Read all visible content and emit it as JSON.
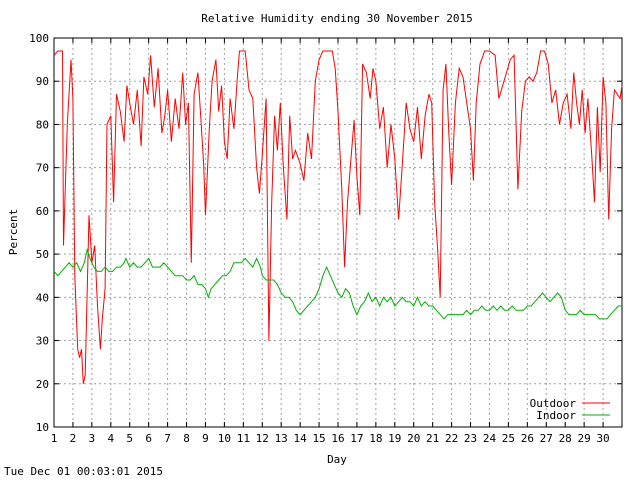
{
  "footer": "Tue Dec 01 00:03:01 2015",
  "chart_data": {
    "type": "line",
    "title": "Relative Humidity ending 30 November 2015",
    "xlabel": "Day",
    "ylabel": "Percent",
    "xlim": [
      1,
      31
    ],
    "ylim": [
      10,
      100
    ],
    "grid": true,
    "legend_position": "bottom-right",
    "x_ticks": [
      1,
      2,
      3,
      4,
      5,
      6,
      7,
      8,
      9,
      10,
      11,
      12,
      13,
      14,
      15,
      16,
      17,
      18,
      19,
      20,
      21,
      22,
      23,
      24,
      25,
      26,
      27,
      28,
      29,
      30
    ],
    "y_ticks": [
      10,
      20,
      30,
      40,
      50,
      60,
      70,
      80,
      90,
      100
    ],
    "series": [
      {
        "name": "Outdoor",
        "color": "#ff0000",
        "points": [
          [
            1.0,
            96
          ],
          [
            1.2,
            97
          ],
          [
            1.45,
            97
          ],
          [
            1.5,
            52
          ],
          [
            1.7,
            80
          ],
          [
            1.9,
            95
          ],
          [
            2.0,
            86
          ],
          [
            2.1,
            45
          ],
          [
            2.25,
            28
          ],
          [
            2.35,
            26
          ],
          [
            2.45,
            28
          ],
          [
            2.55,
            20
          ],
          [
            2.65,
            22
          ],
          [
            2.85,
            59
          ],
          [
            3.0,
            48
          ],
          [
            3.15,
            52
          ],
          [
            3.3,
            38
          ],
          [
            3.45,
            28
          ],
          [
            3.55,
            35
          ],
          [
            3.7,
            42
          ],
          [
            3.8,
            80
          ],
          [
            4.0,
            82
          ],
          [
            4.15,
            62
          ],
          [
            4.3,
            87
          ],
          [
            4.5,
            83
          ],
          [
            4.7,
            76
          ],
          [
            4.85,
            89
          ],
          [
            5.0,
            85
          ],
          [
            5.2,
            80
          ],
          [
            5.4,
            88
          ],
          [
            5.6,
            75
          ],
          [
            5.75,
            91
          ],
          [
            5.95,
            87
          ],
          [
            6.1,
            96
          ],
          [
            6.3,
            84
          ],
          [
            6.5,
            93
          ],
          [
            6.7,
            78
          ],
          [
            6.85,
            82
          ],
          [
            7.0,
            88
          ],
          [
            7.2,
            76
          ],
          [
            7.4,
            86
          ],
          [
            7.6,
            79
          ],
          [
            7.8,
            92
          ],
          [
            7.95,
            80
          ],
          [
            8.1,
            85
          ],
          [
            8.25,
            48
          ],
          [
            8.4,
            87
          ],
          [
            8.6,
            92
          ],
          [
            8.75,
            82
          ],
          [
            8.9,
            71
          ],
          [
            9.0,
            59
          ],
          [
            9.2,
            79
          ],
          [
            9.35,
            90
          ],
          [
            9.55,
            95
          ],
          [
            9.7,
            83
          ],
          [
            9.85,
            89
          ],
          [
            10.0,
            76
          ],
          [
            10.15,
            72
          ],
          [
            10.3,
            86
          ],
          [
            10.5,
            79
          ],
          [
            10.7,
            92
          ],
          [
            10.8,
            97
          ],
          [
            11.1,
            97
          ],
          [
            11.3,
            88
          ],
          [
            11.5,
            86
          ],
          [
            11.7,
            70
          ],
          [
            11.85,
            64
          ],
          [
            12.0,
            73
          ],
          [
            12.2,
            86
          ],
          [
            12.35,
            30
          ],
          [
            12.5,
            62
          ],
          [
            12.65,
            82
          ],
          [
            12.8,
            74
          ],
          [
            12.95,
            85
          ],
          [
            13.1,
            71
          ],
          [
            13.3,
            58
          ],
          [
            13.45,
            82
          ],
          [
            13.6,
            72
          ],
          [
            13.75,
            74
          ],
          [
            14.0,
            71
          ],
          [
            14.2,
            67
          ],
          [
            14.4,
            78
          ],
          [
            14.6,
            72
          ],
          [
            14.8,
            90
          ],
          [
            15.0,
            95
          ],
          [
            15.2,
            97
          ],
          [
            15.7,
            97
          ],
          [
            15.85,
            93
          ],
          [
            16.0,
            83
          ],
          [
            16.2,
            65
          ],
          [
            16.35,
            47
          ],
          [
            16.5,
            62
          ],
          [
            16.7,
            73
          ],
          [
            16.85,
            81
          ],
          [
            17.0,
            68
          ],
          [
            17.15,
            59
          ],
          [
            17.3,
            94
          ],
          [
            17.5,
            92
          ],
          [
            17.7,
            86
          ],
          [
            17.85,
            93
          ],
          [
            18.0,
            90
          ],
          [
            18.2,
            79
          ],
          [
            18.4,
            84
          ],
          [
            18.6,
            70
          ],
          [
            18.8,
            80
          ],
          [
            19.0,
            72
          ],
          [
            19.2,
            58
          ],
          [
            19.4,
            71
          ],
          [
            19.6,
            85
          ],
          [
            19.8,
            79
          ],
          [
            20.0,
            76
          ],
          [
            20.2,
            84
          ],
          [
            20.4,
            72
          ],
          [
            20.6,
            82
          ],
          [
            20.8,
            87
          ],
          [
            20.95,
            85
          ],
          [
            21.1,
            62
          ],
          [
            21.25,
            52
          ],
          [
            21.4,
            40
          ],
          [
            21.55,
            88
          ],
          [
            21.7,
            94
          ],
          [
            21.85,
            78
          ],
          [
            22.0,
            66
          ],
          [
            22.2,
            85
          ],
          [
            22.4,
            93
          ],
          [
            22.6,
            91
          ],
          [
            22.8,
            85
          ],
          [
            23.0,
            79
          ],
          [
            23.15,
            67
          ],
          [
            23.3,
            85
          ],
          [
            23.5,
            94
          ],
          [
            23.75,
            97
          ],
          [
            24.0,
            97
          ],
          [
            24.3,
            96
          ],
          [
            24.5,
            86
          ],
          [
            24.7,
            89
          ],
          [
            24.9,
            92
          ],
          [
            25.1,
            95
          ],
          [
            25.3,
            96
          ],
          [
            25.5,
            65
          ],
          [
            25.7,
            83
          ],
          [
            25.9,
            90
          ],
          [
            26.1,
            91
          ],
          [
            26.3,
            90
          ],
          [
            26.5,
            92
          ],
          [
            26.7,
            97
          ],
          [
            26.9,
            97
          ],
          [
            27.1,
            94
          ],
          [
            27.3,
            85
          ],
          [
            27.5,
            88
          ],
          [
            27.7,
            80
          ],
          [
            27.9,
            85
          ],
          [
            28.1,
            87
          ],
          [
            28.3,
            79
          ],
          [
            28.45,
            92
          ],
          [
            28.6,
            85
          ],
          [
            28.75,
            80
          ],
          [
            28.9,
            88
          ],
          [
            29.05,
            78
          ],
          [
            29.2,
            86
          ],
          [
            29.4,
            73
          ],
          [
            29.55,
            62
          ],
          [
            29.7,
            84
          ],
          [
            29.85,
            69
          ],
          [
            30.0,
            91
          ],
          [
            30.15,
            85
          ],
          [
            30.3,
            58
          ],
          [
            30.45,
            79
          ],
          [
            30.6,
            88
          ],
          [
            30.75,
            87
          ],
          [
            30.9,
            86
          ],
          [
            31.0,
            89
          ]
        ]
      },
      {
        "name": "Indoor",
        "color": "#00b000",
        "points": [
          [
            1.0,
            46
          ],
          [
            1.2,
            45
          ],
          [
            1.4,
            46
          ],
          [
            1.6,
            47
          ],
          [
            1.8,
            48
          ],
          [
            2.0,
            47
          ],
          [
            2.2,
            48
          ],
          [
            2.4,
            46
          ],
          [
            2.6,
            48
          ],
          [
            2.75,
            51
          ],
          [
            2.9,
            49
          ],
          [
            3.1,
            47
          ],
          [
            3.3,
            46
          ],
          [
            3.5,
            46
          ],
          [
            3.7,
            47
          ],
          [
            3.9,
            46
          ],
          [
            4.1,
            46
          ],
          [
            4.3,
            47
          ],
          [
            4.5,
            47
          ],
          [
            4.7,
            48
          ],
          [
            4.8,
            49
          ],
          [
            5.0,
            47
          ],
          [
            5.2,
            48
          ],
          [
            5.4,
            47
          ],
          [
            5.6,
            47
          ],
          [
            5.8,
            48
          ],
          [
            6.0,
            49
          ],
          [
            6.2,
            47
          ],
          [
            6.4,
            47
          ],
          [
            6.6,
            47
          ],
          [
            6.8,
            48
          ],
          [
            7.0,
            47
          ],
          [
            7.2,
            46
          ],
          [
            7.4,
            45
          ],
          [
            7.6,
            45
          ],
          [
            7.8,
            45
          ],
          [
            8.0,
            44
          ],
          [
            8.2,
            44
          ],
          [
            8.4,
            45
          ],
          [
            8.6,
            43
          ],
          [
            8.8,
            43
          ],
          [
            9.0,
            42
          ],
          [
            9.15,
            40
          ],
          [
            9.3,
            42
          ],
          [
            9.5,
            43
          ],
          [
            9.7,
            44
          ],
          [
            9.9,
            45
          ],
          [
            10.1,
            45
          ],
          [
            10.3,
            46
          ],
          [
            10.5,
            48
          ],
          [
            10.7,
            48
          ],
          [
            10.9,
            48
          ],
          [
            11.1,
            49
          ],
          [
            11.3,
            48
          ],
          [
            11.5,
            47
          ],
          [
            11.7,
            49
          ],
          [
            11.9,
            47
          ],
          [
            12.0,
            45
          ],
          [
            12.2,
            44
          ],
          [
            12.4,
            44
          ],
          [
            12.6,
            44
          ],
          [
            12.8,
            43
          ],
          [
            13.0,
            41
          ],
          [
            13.2,
            40
          ],
          [
            13.4,
            40
          ],
          [
            13.6,
            39
          ],
          [
            13.8,
            37
          ],
          [
            14.0,
            36
          ],
          [
            14.2,
            37
          ],
          [
            14.4,
            38
          ],
          [
            14.6,
            39
          ],
          [
            14.8,
            40
          ],
          [
            15.0,
            42
          ],
          [
            15.2,
            45
          ],
          [
            15.4,
            47
          ],
          [
            15.6,
            45
          ],
          [
            15.8,
            43
          ],
          [
            16.0,
            41
          ],
          [
            16.2,
            40
          ],
          [
            16.4,
            42
          ],
          [
            16.6,
            41
          ],
          [
            16.8,
            38
          ],
          [
            17.0,
            36
          ],
          [
            17.2,
            38
          ],
          [
            17.4,
            39
          ],
          [
            17.6,
            41
          ],
          [
            17.8,
            39
          ],
          [
            18.0,
            40
          ],
          [
            18.2,
            38
          ],
          [
            18.4,
            40
          ],
          [
            18.6,
            39
          ],
          [
            18.8,
            40
          ],
          [
            19.0,
            38
          ],
          [
            19.2,
            39
          ],
          [
            19.4,
            40
          ],
          [
            19.6,
            39
          ],
          [
            19.8,
            39
          ],
          [
            20.0,
            38
          ],
          [
            20.2,
            40
          ],
          [
            20.4,
            38
          ],
          [
            20.6,
            39
          ],
          [
            20.8,
            38
          ],
          [
            21.0,
            38
          ],
          [
            21.2,
            37
          ],
          [
            21.4,
            36
          ],
          [
            21.6,
            35
          ],
          [
            21.8,
            36
          ],
          [
            22.0,
            36
          ],
          [
            22.2,
            36
          ],
          [
            22.4,
            36
          ],
          [
            22.6,
            36
          ],
          [
            22.8,
            37
          ],
          [
            23.0,
            36
          ],
          [
            23.2,
            37
          ],
          [
            23.4,
            37
          ],
          [
            23.6,
            38
          ],
          [
            23.8,
            37
          ],
          [
            24.0,
            37
          ],
          [
            24.2,
            38
          ],
          [
            24.4,
            37
          ],
          [
            24.6,
            38
          ],
          [
            24.8,
            37
          ],
          [
            25.0,
            37
          ],
          [
            25.2,
            38
          ],
          [
            25.4,
            37
          ],
          [
            25.6,
            37
          ],
          [
            25.8,
            37
          ],
          [
            26.0,
            38
          ],
          [
            26.2,
            38
          ],
          [
            26.4,
            39
          ],
          [
            26.6,
            40
          ],
          [
            26.8,
            41
          ],
          [
            27.0,
            40
          ],
          [
            27.2,
            39
          ],
          [
            27.4,
            40
          ],
          [
            27.6,
            41
          ],
          [
            27.8,
            40
          ],
          [
            28.0,
            37
          ],
          [
            28.2,
            36
          ],
          [
            28.4,
            36
          ],
          [
            28.6,
            36
          ],
          [
            28.8,
            37
          ],
          [
            29.0,
            36
          ],
          [
            29.2,
            36
          ],
          [
            29.4,
            36
          ],
          [
            29.6,
            36
          ],
          [
            29.8,
            35
          ],
          [
            30.0,
            35
          ],
          [
            30.2,
            35
          ],
          [
            30.4,
            36
          ],
          [
            30.6,
            37
          ],
          [
            30.8,
            38
          ],
          [
            31.0,
            38
          ]
        ]
      }
    ]
  }
}
